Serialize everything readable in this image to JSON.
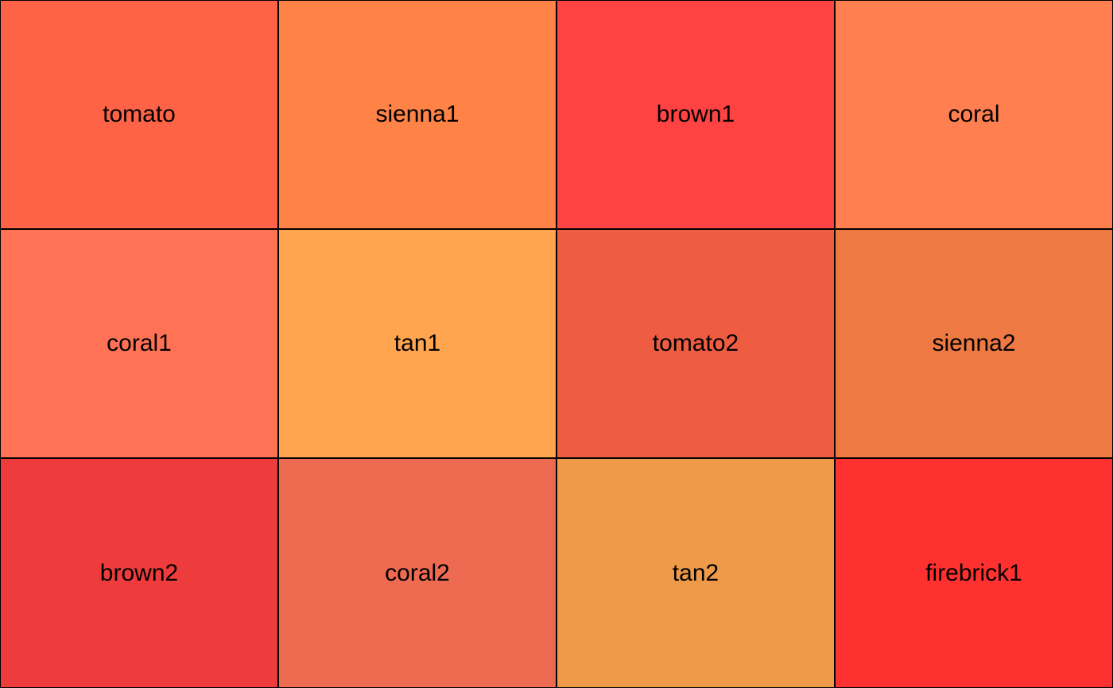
{
  "swatches": [
    {
      "label": "tomato",
      "color": "#FF6347"
    },
    {
      "label": "sienna1",
      "color": "#FF8247"
    },
    {
      "label": "brown1",
      "color": "#FF4242"
    },
    {
      "label": "coral",
      "color": "#FF7F50"
    },
    {
      "label": "coral1",
      "color": "#FF7256"
    },
    {
      "label": "tan1",
      "color": "#FFA54F"
    },
    {
      "label": "tomato2",
      "color": "#EE5C42"
    },
    {
      "label": "sienna2",
      "color": "#EE7942"
    },
    {
      "label": "brown2",
      "color": "#EE3B3B"
    },
    {
      "label": "coral2",
      "color": "#EE6A50"
    },
    {
      "label": "tan2",
      "color": "#EE9A49"
    },
    {
      "label": "firebrick1",
      "color": "#FF3030"
    }
  ]
}
